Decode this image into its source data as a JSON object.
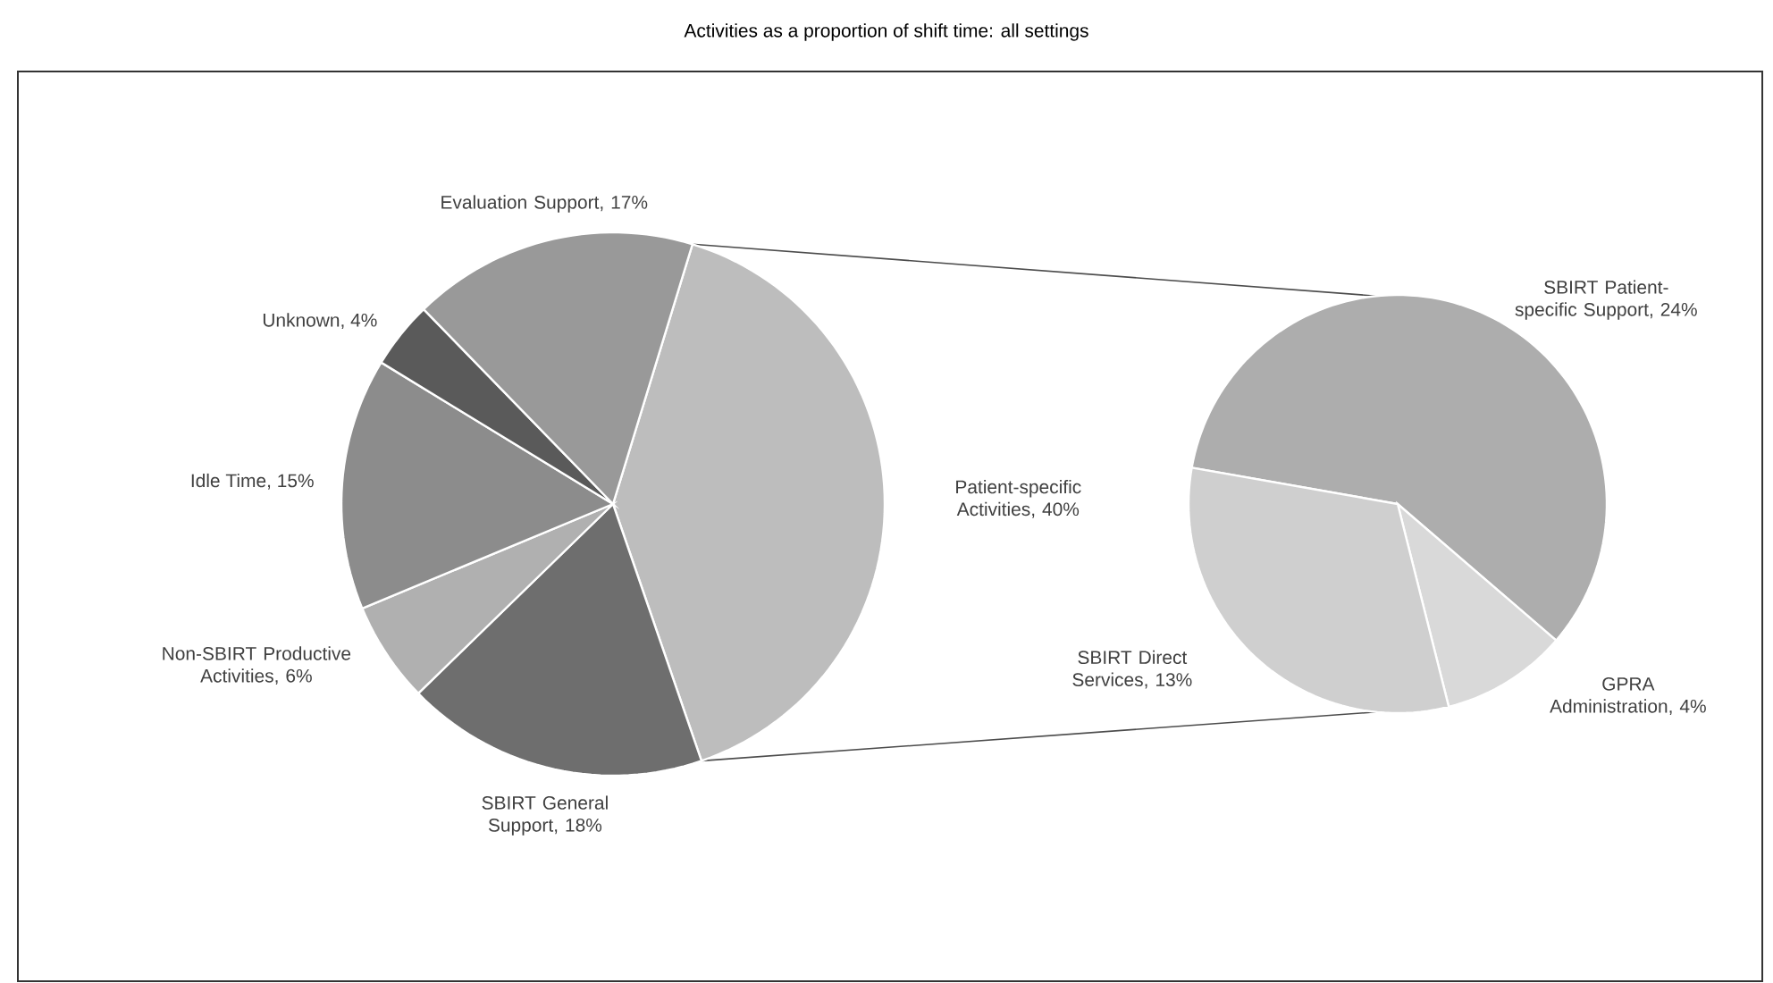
{
  "chart_data": [
    {
      "type": "pie",
      "title": "Activities as a proportion of shift time: all settings",
      "categories": [
        "Patient-specific Activities, 40%",
        "SBIRT General Support, 18%",
        "Non-SBIRT Productive Activities, 6%",
        "Idle Time, 15%",
        "Unknown, 4%",
        "Evaluation Support, 17%"
      ],
      "values": [
        40,
        18,
        6,
        15,
        4,
        17
      ],
      "colors": [
        "#bdbdbd",
        "#6e6e6e",
        "#b0b0b0",
        "#8c8c8c",
        "#5a5a5a",
        "#999999"
      ]
    },
    {
      "type": "pie",
      "categories": [
        "SBIRT Patient-specific Support, 24%",
        "GPRA Administration, 4%",
        "SBIRT Direct Services, 13%"
      ],
      "values": [
        24,
        4,
        13
      ],
      "colors": [
        "#adadad",
        "#d9d9d9",
        "#cfcfcf"
      ]
    }
  ]
}
